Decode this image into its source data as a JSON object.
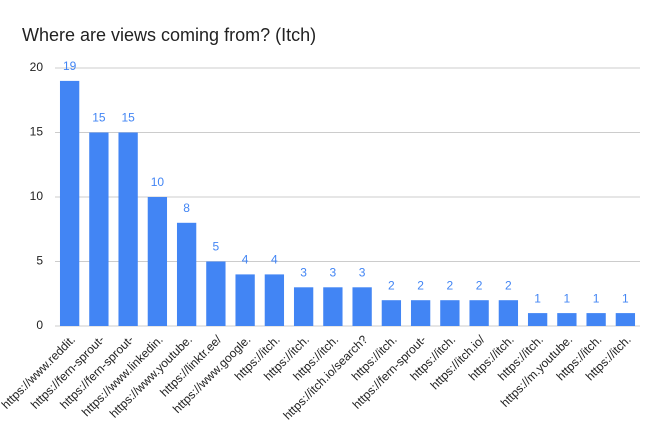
{
  "chart_data": {
    "type": "bar",
    "title": "Where are views coming from? (Itch)",
    "categories": [
      "https://www.reddit.",
      "https://fern-sprout-",
      "https://fern-sprout-",
      "https://www.linkedin.",
      "https://www.youtube.",
      "https://linktr.ee/",
      "https://www.google.",
      "https://itch.",
      "https://itch.",
      "https://itch.",
      "https://itch.io/search?",
      "https://itch.",
      "https://fern-sprout-",
      "https://itch.",
      "https://itch.io/",
      "https://itch.",
      "https://itch.",
      "https://m.youtube.",
      "https://itch.",
      "https://itch."
    ],
    "values": [
      19,
      15,
      15,
      10,
      8,
      5,
      4,
      4,
      3,
      3,
      3,
      2,
      2,
      2,
      2,
      2,
      1,
      1,
      1,
      1
    ],
    "color": "#4285f4",
    "ylim": [
      0,
      20
    ],
    "yticks": [
      0,
      5,
      10,
      15,
      20
    ],
    "grid": true
  }
}
